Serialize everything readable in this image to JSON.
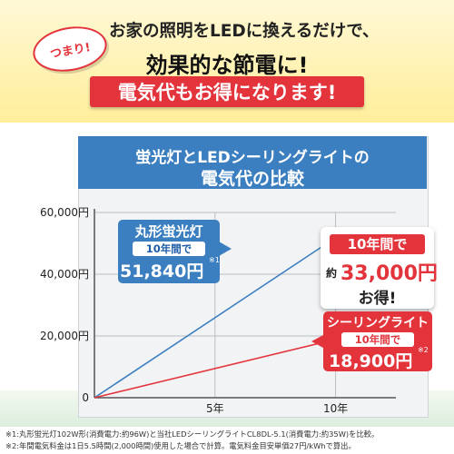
{
  "header": {
    "badge": "つまり!",
    "line1": "お家の照明をLEDに換えるだけで、",
    "line2": "効果的な節電に!",
    "banner": "電気代もお得になります!"
  },
  "chart_data": {
    "type": "line",
    "title": "蛍光灯とLEDシーリングライトの",
    "subtitle": "電気代の比較",
    "x": [
      0,
      5,
      10
    ],
    "x_tick_labels": [
      "5年",
      "10年"
    ],
    "y_tick_labels": [
      "0",
      "20,000円",
      "40,000円",
      "60,000円"
    ],
    "ylim": [
      0,
      60000
    ],
    "xlim": [
      0,
      12.5
    ],
    "grid": "horizontal",
    "series": [
      {
        "name": "丸形蛍光灯",
        "x": [
          0,
          10
        ],
        "values": [
          0,
          51840
        ],
        "color": "#3c7fc1"
      },
      {
        "name": "シーリングライト",
        "x": [
          0,
          10
        ],
        "values": [
          0,
          18900
        ],
        "color": "#e3343c"
      }
    ]
  },
  "callouts": {
    "fluorescent": {
      "name": "丸形蛍光灯",
      "period": "10年間で",
      "value": "51,840円",
      "note": "※1"
    },
    "savings": {
      "head": "10年間で",
      "prefix": "約",
      "amount": "33,000円",
      "tail": "お得!"
    },
    "led": {
      "name": "シーリングライト",
      "period": "10年間で",
      "value": "18,900円",
      "note": "※2"
    }
  },
  "footnotes": [
    "※1:丸形蛍光灯102W形(消費電力:約96W)と当社LEDシーリングライトCL8DL-5.1(消費電力:約35W)を比較。",
    "※2:年間電気料金は1日5.5時間(2,000時間)使用した場合で計算。電気料金目安単価27円/kWhで算出。"
  ],
  "colors": {
    "accent_red": "#e3343c",
    "accent_blue": "#3c7fc1"
  }
}
